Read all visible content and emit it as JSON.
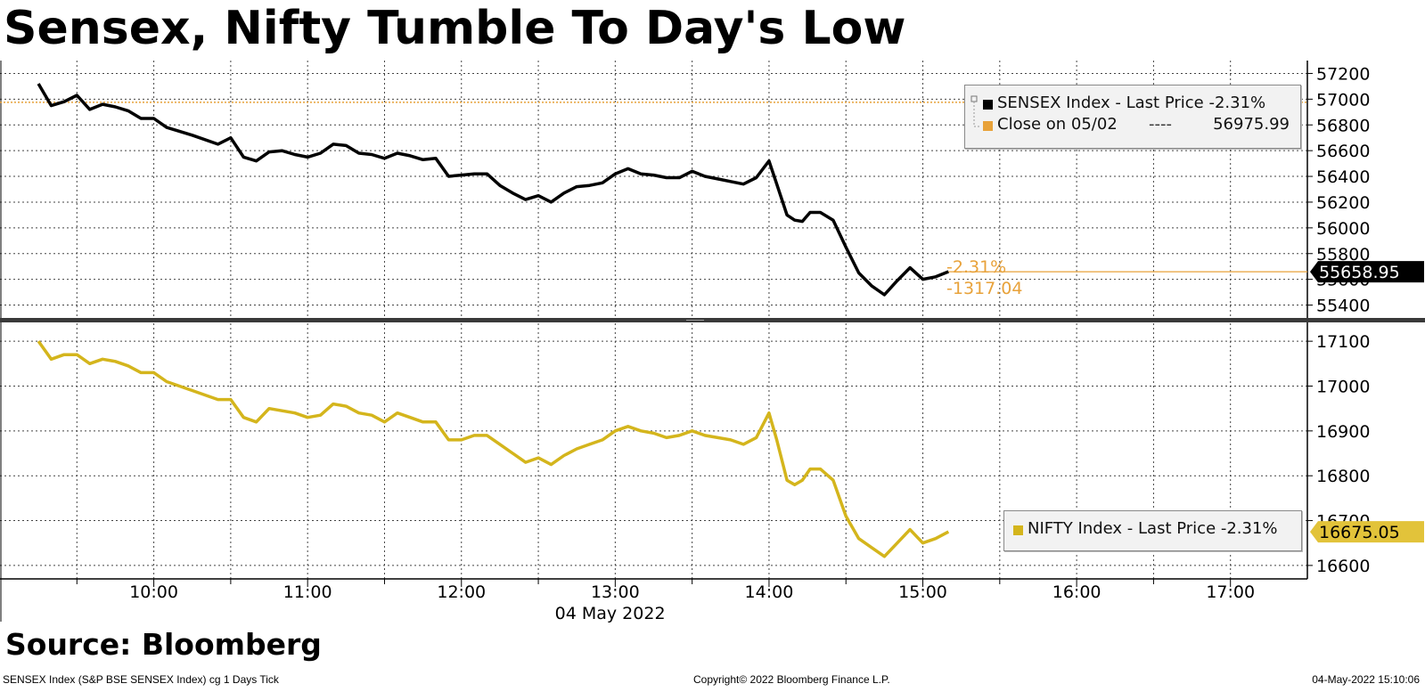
{
  "title": "Sensex, Nifty Tumble To Day's Low",
  "source": "Source: Bloomberg",
  "footer": {
    "left": "SENSEX Index (S&P BSE SENSEX Index) cg 1 Days  Tick",
    "center": "Copyright© 2022 Bloomberg Finance L.P.",
    "right": "04-May-2022 15:10:06"
  },
  "chart_data": [
    {
      "type": "line",
      "series": [
        {
          "name": "SENSEX Index - Last Price -2.31%",
          "color": "#000000",
          "x": [
            "09:15",
            "09:20",
            "09:25",
            "09:30",
            "09:35",
            "09:40",
            "09:45",
            "09:50",
            "09:55",
            "10:00",
            "10:05",
            "10:15",
            "10:25",
            "10:30",
            "10:35",
            "10:40",
            "10:45",
            "10:50",
            "10:55",
            "11:00",
            "11:05",
            "11:10",
            "11:15",
            "11:20",
            "11:25",
            "11:30",
            "11:35",
            "11:40",
            "11:45",
            "11:50",
            "11:55",
            "12:00",
            "12:05",
            "12:10",
            "12:15",
            "12:20",
            "12:25",
            "12:30",
            "12:35",
            "12:40",
            "12:45",
            "12:50",
            "12:55",
            "13:00",
            "13:05",
            "13:10",
            "13:15",
            "13:20",
            "13:25",
            "13:30",
            "13:35",
            "13:40",
            "13:45",
            "13:50",
            "13:55",
            "14:00",
            "14:03",
            "14:07",
            "14:10",
            "14:13",
            "14:16",
            "14:20",
            "14:25",
            "14:30",
            "14:35",
            "14:40",
            "14:45",
            "14:50",
            "14:55",
            "15:00",
            "15:05",
            "15:10"
          ],
          "y": [
            57120,
            56950,
            56980,
            57030,
            56920,
            56960,
            56940,
            56910,
            56850,
            56850,
            56780,
            56720,
            56650,
            56700,
            56550,
            56520,
            56590,
            56600,
            56570,
            56550,
            56580,
            56650,
            56640,
            56580,
            56570,
            56540,
            56580,
            56560,
            56530,
            56540,
            56400,
            56410,
            56420,
            56420,
            56330,
            56270,
            56220,
            56250,
            56200,
            56270,
            56320,
            56330,
            56350,
            56420,
            56460,
            56420,
            56410,
            56390,
            56390,
            56440,
            56400,
            56380,
            56360,
            56340,
            56390,
            56520,
            56340,
            56100,
            56060,
            56050,
            56120,
            56120,
            56060,
            55850,
            55650,
            55550,
            55480,
            55590,
            55690,
            55600,
            55620,
            55660
          ],
          "last_value": "55658.95",
          "change_pct": "-2.31%",
          "change_abs": "-1317.04"
        },
        {
          "name": "Close on 05/02",
          "color": "#e8a23a",
          "value": 56975.99,
          "value_label": "56975.99",
          "label_dashes": "----"
        }
      ],
      "xticks": [
        "10:00",
        "11:00",
        "12:00",
        "13:00",
        "14:00",
        "15:00",
        "16:00",
        "17:00"
      ],
      "xlabel": "04 May 2022",
      "yticks": [
        55400,
        55600,
        55800,
        56000,
        56200,
        56400,
        56600,
        56800,
        57000,
        57200
      ],
      "ylim": [
        55300,
        57300
      ],
      "xlim": [
        "09:00",
        "17:30"
      ],
      "grid": true,
      "legend": "top-right"
    },
    {
      "type": "line",
      "series": [
        {
          "name": "NIFTY Index - Last Price -2.31%",
          "color": "#d4b51c",
          "x": [
            "09:15",
            "09:20",
            "09:25",
            "09:30",
            "09:35",
            "09:40",
            "09:45",
            "09:50",
            "09:55",
            "10:00",
            "10:05",
            "10:15",
            "10:25",
            "10:30",
            "10:35",
            "10:40",
            "10:45",
            "10:50",
            "10:55",
            "11:00",
            "11:05",
            "11:10",
            "11:15",
            "11:20",
            "11:25",
            "11:30",
            "11:35",
            "11:40",
            "11:45",
            "11:50",
            "11:55",
            "12:00",
            "12:05",
            "12:10",
            "12:15",
            "12:20",
            "12:25",
            "12:30",
            "12:35",
            "12:40",
            "12:45",
            "12:50",
            "12:55",
            "13:00",
            "13:05",
            "13:10",
            "13:15",
            "13:20",
            "13:25",
            "13:30",
            "13:35",
            "13:40",
            "13:45",
            "13:50",
            "13:55",
            "14:00",
            "14:03",
            "14:07",
            "14:10",
            "14:13",
            "14:16",
            "14:20",
            "14:25",
            "14:30",
            "14:35",
            "14:40",
            "14:45",
            "14:50",
            "14:55",
            "15:00",
            "15:05",
            "15:10"
          ],
          "y": [
            17100,
            17060,
            17070,
            17070,
            17050,
            17060,
            17055,
            17045,
            17030,
            17030,
            17010,
            16990,
            16970,
            16970,
            16930,
            16920,
            16950,
            16945,
            16940,
            16930,
            16935,
            16960,
            16955,
            16940,
            16935,
            16920,
            16940,
            16930,
            16920,
            16920,
            16880,
            16880,
            16890,
            16890,
            16870,
            16850,
            16830,
            16840,
            16825,
            16845,
            16860,
            16870,
            16880,
            16900,
            16910,
            16900,
            16895,
            16885,
            16890,
            16900,
            16890,
            16885,
            16880,
            16870,
            16885,
            16940,
            16880,
            16790,
            16780,
            16790,
            16815,
            16815,
            16790,
            16710,
            16660,
            16640,
            16620,
            16650,
            16680,
            16650,
            16660,
            16675
          ],
          "last_value": "16675.05"
        }
      ],
      "xticks": [
        "10:00",
        "11:00",
        "12:00",
        "13:00",
        "14:00",
        "15:00",
        "16:00",
        "17:00"
      ],
      "xlabel": "04 May 2022",
      "yticks": [
        16600,
        16700,
        16800,
        16900,
        17000,
        17100
      ],
      "ylim": [
        16570,
        17140
      ],
      "xlim": [
        "09:00",
        "17:30"
      ],
      "grid": true,
      "legend": "bottom-right"
    }
  ]
}
